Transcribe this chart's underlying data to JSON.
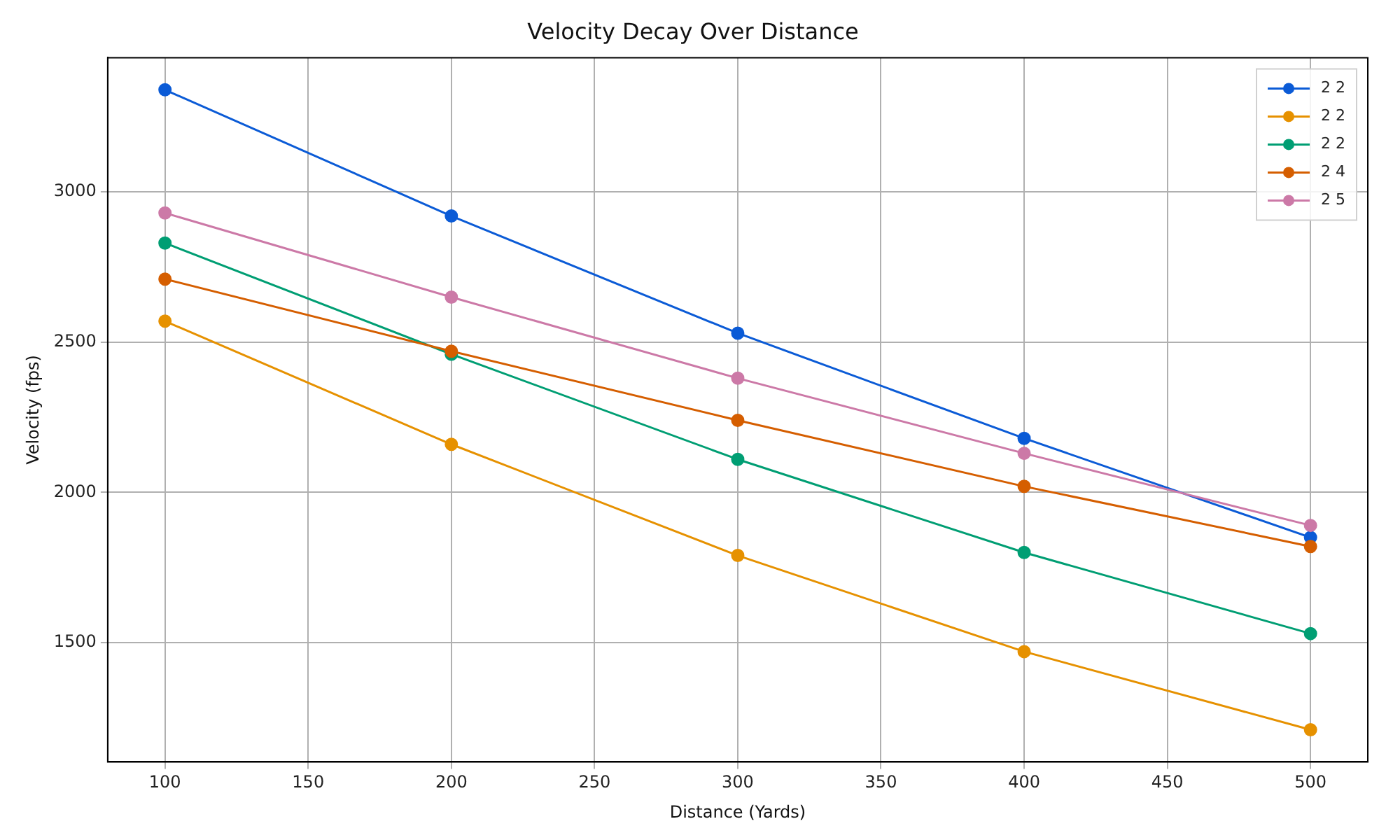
{
  "chart_data": {
    "type": "line",
    "title": "Velocity Decay Over Distance",
    "xlabel": "Distance (Yards)",
    "ylabel": "Velocity (fps)",
    "x": [
      100,
      200,
      300,
      400,
      500
    ],
    "series": [
      {
        "name": "2 2",
        "color": "#0b5bd6",
        "values": [
          3340,
          2920,
          2530,
          2180,
          1850
        ]
      },
      {
        "name": "2 2",
        "color": "#e69100",
        "values": [
          2570,
          2160,
          1790,
          1470,
          1210
        ]
      },
      {
        "name": "2 2",
        "color": "#009e73",
        "values": [
          2830,
          2460,
          2110,
          1800,
          1530
        ]
      },
      {
        "name": "2 4",
        "color": "#d55e00",
        "values": [
          2710,
          2470,
          2240,
          2020,
          1820
        ]
      },
      {
        "name": "2 5",
        "color": "#cc79a7",
        "values": [
          2930,
          2650,
          2380,
          2130,
          1890
        ]
      }
    ],
    "xlim": [
      80,
      520
    ],
    "xticks": [
      100,
      150,
      200,
      250,
      300,
      350,
      400,
      450,
      500
    ],
    "ylim": [
      1103,
      3447
    ],
    "yticks": [
      1500,
      2000,
      2500,
      3000
    ],
    "grid": true,
    "legend": "top right",
    "marker": "circle",
    "line_style": "solid"
  }
}
